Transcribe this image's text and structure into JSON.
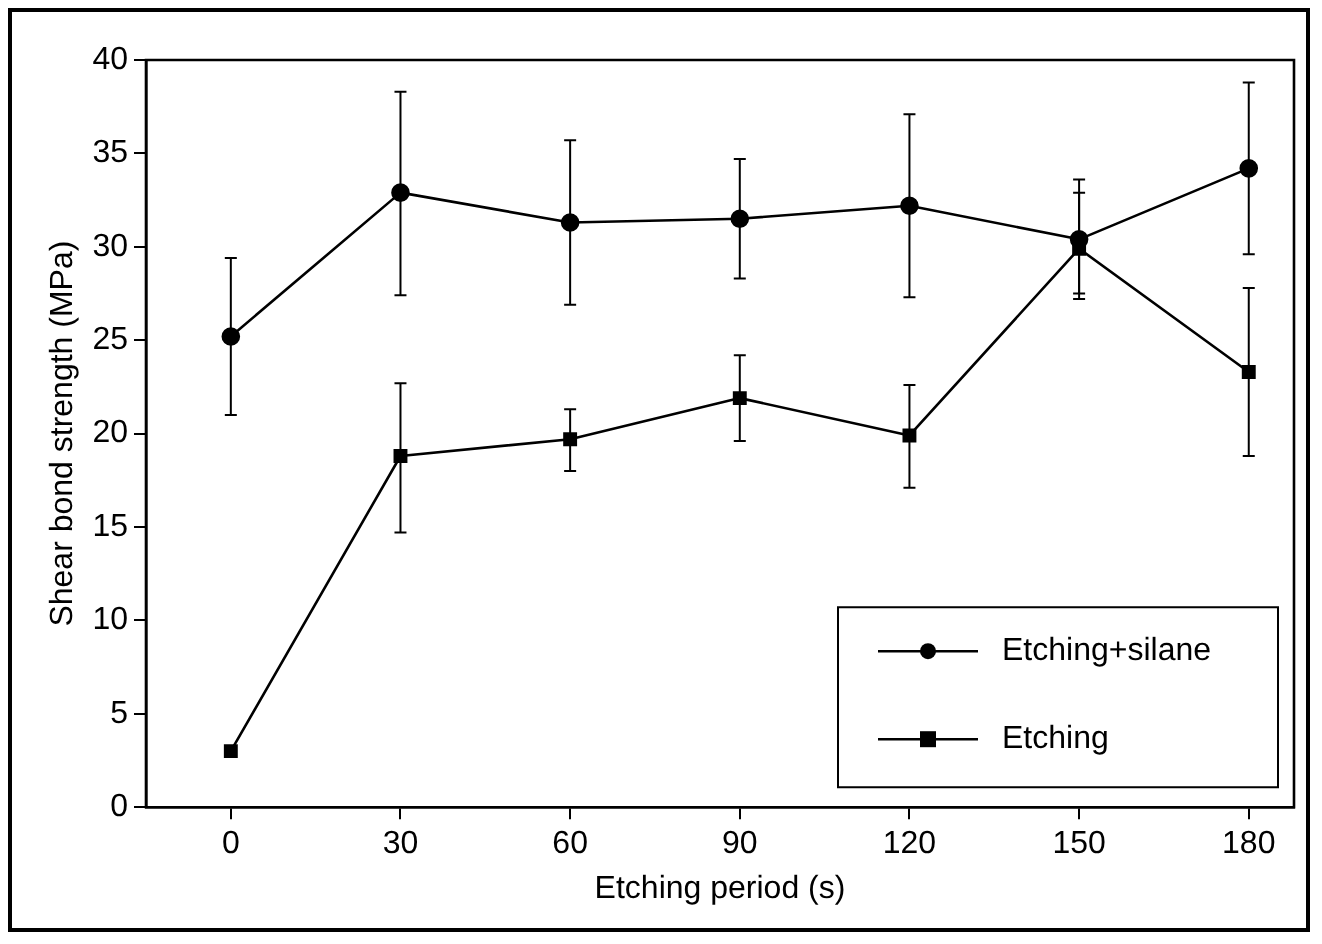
{
  "chart_data": {
    "type": "line",
    "xlabel": "Etching period (s)",
    "ylabel": "Shear bond strength (MPa)",
    "x": [
      0,
      30,
      60,
      90,
      120,
      150,
      180
    ],
    "series": [
      {
        "name": "Etching+silane",
        "color": "#000000",
        "marker": "circle",
        "values": [
          25.2,
          32.9,
          31.3,
          31.5,
          32.2,
          30.4,
          34.2
        ],
        "errors": [
          [
            21,
            29.4
          ],
          [
            27.4,
            38.3
          ],
          [
            26.9,
            35.7
          ],
          [
            28.3,
            34.7
          ],
          [
            27.3,
            37.1
          ],
          [
            27.5,
            33.6
          ],
          [
            29.6,
            38.8
          ]
        ]
      },
      {
        "name": "Etching",
        "color": "#000000",
        "marker": "square",
        "values": [
          3,
          18.8,
          19.7,
          21.9,
          19.9,
          29.9,
          23.3
        ],
        "errors": [
          null,
          [
            14.7,
            22.7
          ],
          [
            18,
            21.3
          ],
          [
            19.6,
            24.2
          ],
          [
            17.1,
            22.6
          ],
          [
            27.2,
            32.9
          ],
          [
            18.8,
            27.8
          ]
        ]
      }
    ],
    "xlim": [
      -15,
      188
    ],
    "xticks": [
      0,
      30,
      60,
      90,
      120,
      150,
      180
    ],
    "ylim": [
      0,
      40
    ],
    "yticks": [
      0,
      5,
      10,
      15,
      20,
      25,
      30,
      35,
      40
    ],
    "grid": false,
    "legend": "bottom right",
    "line_style": "solid"
  }
}
